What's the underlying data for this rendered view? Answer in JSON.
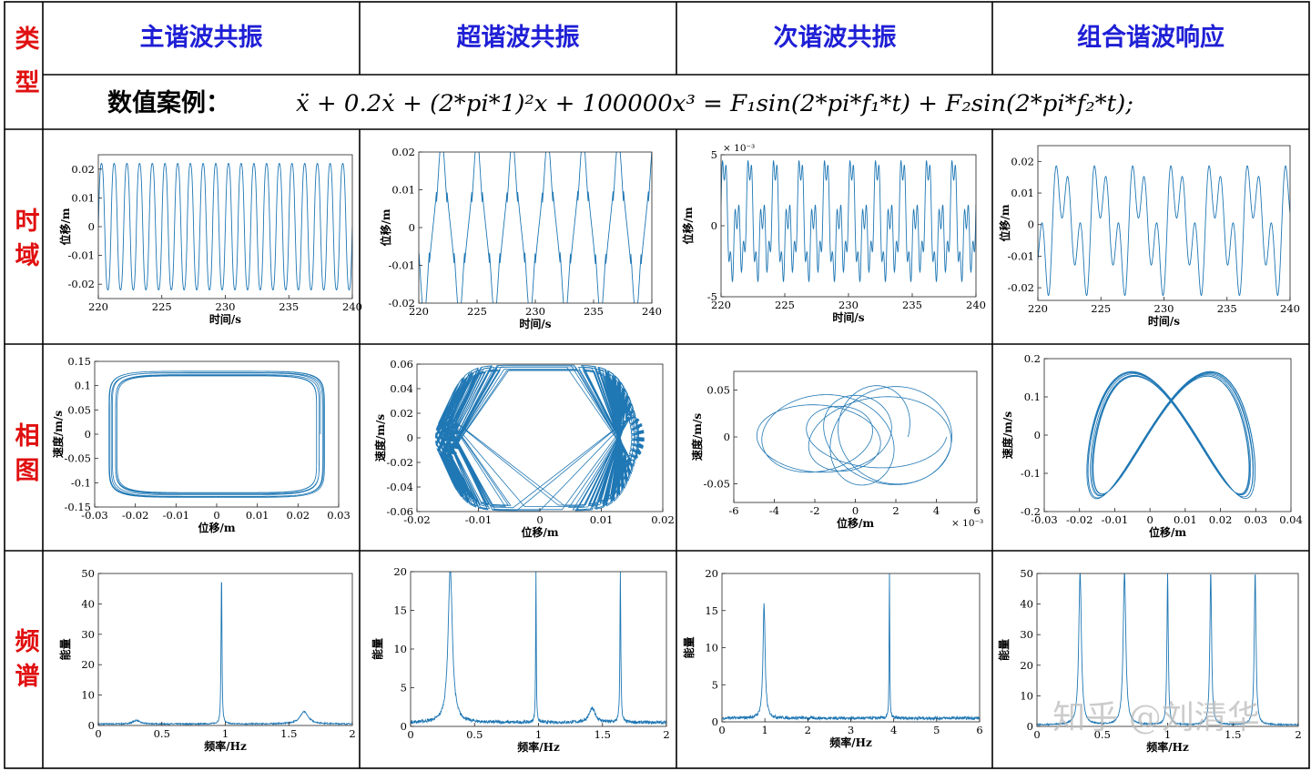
{
  "row_labels": {
    "type": "类型",
    "time": "时域",
    "phase": "相图",
    "spectrum": "频谱"
  },
  "columns": [
    "主谐波共振",
    "超谐波共振",
    "次谐波共振",
    "组合谐波响应"
  ],
  "example": {
    "label": "数值案例：",
    "equation": "ẍ + 0.2ẋ + (2*pi*1)²x + 100000x³ = F₁sin(2*pi*f₁*t) + F₂sin(2*pi*f₂*t);"
  },
  "watermark": "知乎 @刘清华",
  "colors": {
    "header_text": "#1f1fd6",
    "row_label": "#e01010",
    "line": "#1f77b4",
    "border": "#000000"
  },
  "chart_data": [
    {
      "id": "t1",
      "type": "line",
      "kind": "time",
      "xlabel": "时间/s",
      "ylabel": "位移/m",
      "xlim": [
        220,
        240
      ],
      "ylim": [
        -0.025,
        0.025
      ],
      "xticks": [
        220,
        225,
        230,
        235,
        240
      ],
      "yticks": [
        -0.02,
        -0.01,
        0,
        0.01,
        0.02
      ],
      "ytick_labels": [
        "-0.02",
        "-0.01",
        "0",
        "0.01",
        "0.02"
      ],
      "freq": 1.0,
      "amp": 0.025
    },
    {
      "id": "t2",
      "type": "line",
      "kind": "time",
      "xlabel": "时间/s",
      "ylabel": "位移/m",
      "xlim": [
        220,
        240
      ],
      "ylim": [
        -0.02,
        0.02
      ],
      "xticks": [
        220,
        225,
        230,
        235,
        240
      ],
      "yticks": [
        -0.02,
        -0.01,
        0,
        0.01,
        0.02
      ],
      "ytick_labels": [
        "-0.02",
        "-0.01",
        "0",
        "0.01",
        "0.02"
      ],
      "freq": 0.33,
      "amp": 0.017
    },
    {
      "id": "t3",
      "type": "line",
      "kind": "time",
      "xlabel": "时间/s",
      "ylabel": "位移/m",
      "xlim": [
        220,
        240
      ],
      "ylim": [
        -5,
        5
      ],
      "xticks": [
        220,
        225,
        230,
        235,
        240
      ],
      "yticks": [
        -5,
        0,
        5
      ],
      "ytick_labels": [
        "-5",
        "0",
        "5"
      ],
      "exponent": "× 10⁻³",
      "freq": 1.0,
      "amp": 5
    },
    {
      "id": "t4",
      "type": "line",
      "kind": "time",
      "xlabel": "时间/s",
      "ylabel": "位移/m",
      "xlim": [
        220,
        240
      ],
      "ylim": [
        -0.024,
        0.025
      ],
      "xticks": [
        220,
        225,
        230,
        235,
        240
      ],
      "yticks": [
        -0.02,
        -0.01,
        0,
        0.01,
        0.02
      ],
      "ytick_labels": [
        "-0.02",
        "-0.01",
        "0",
        "0.01",
        "0.02"
      ],
      "freq": 0.33,
      "amp": 0.024
    },
    {
      "id": "p1",
      "type": "line",
      "kind": "phase",
      "xlabel": "位移/m",
      "ylabel": "速度/m/s",
      "xlim": [
        -0.03,
        0.03
      ],
      "ylim": [
        -0.15,
        0.15
      ],
      "xticks": [
        -0.03,
        -0.02,
        -0.01,
        0,
        0.01,
        0.02,
        0.03
      ],
      "xtick_labels": [
        "-0.03",
        "-0.02",
        "-0.01",
        "0",
        "0.01",
        "0.02",
        "0.03"
      ],
      "yticks": [
        -0.15,
        -0.1,
        -0.05,
        0,
        0.05,
        0.1,
        0.15
      ],
      "ytick_labels": [
        "-0.15",
        "-0.1",
        "-0.05",
        "0",
        "0.05",
        "0.1",
        "0.15"
      ]
    },
    {
      "id": "p2",
      "type": "line",
      "kind": "phase",
      "xlabel": "位移/m",
      "ylabel": "速度/m/s",
      "xlim": [
        -0.02,
        0.02
      ],
      "ylim": [
        -0.06,
        0.06
      ],
      "xticks": [
        -0.02,
        -0.01,
        0,
        0.01,
        0.02
      ],
      "xtick_labels": [
        "-0.02",
        "-0.01",
        "0",
        "0.01",
        "0.02"
      ],
      "yticks": [
        -0.06,
        -0.04,
        -0.02,
        0,
        0.02,
        0.04,
        0.06
      ],
      "ytick_labels": [
        "-0.06",
        "-0.04",
        "-0.02",
        "0",
        "0.02",
        "0.04",
        "0.06"
      ]
    },
    {
      "id": "p3",
      "type": "line",
      "kind": "phase",
      "xlabel": "位移/m",
      "ylabel": "速度/m/s",
      "xlim": [
        -6,
        6
      ],
      "ylim": [
        -0.07,
        0.07
      ],
      "xticks": [
        -6,
        -4,
        -2,
        0,
        2,
        4,
        6
      ],
      "xtick_labels": [
        "-6",
        "-4",
        "-2",
        "0",
        "2",
        "4",
        "6"
      ],
      "yticks": [
        -0.05,
        0,
        0.05
      ],
      "ytick_labels": [
        "-0.05",
        "0",
        "0.05"
      ],
      "exponent": "× 10⁻³"
    },
    {
      "id": "p4",
      "type": "line",
      "kind": "phase",
      "xlabel": "位移/m",
      "ylabel": "速度/m/s",
      "xlim": [
        -0.03,
        0.04
      ],
      "ylim": [
        -0.2,
        0.2
      ],
      "xticks": [
        -0.03,
        -0.02,
        -0.01,
        0,
        0.01,
        0.02,
        0.03,
        0.04
      ],
      "xtick_labels": [
        "-0.03",
        "-0.02",
        "-0.01",
        "0",
        "0.01",
        "0.02",
        "0.03",
        "0.04"
      ],
      "yticks": [
        -0.2,
        -0.1,
        0,
        0.1,
        0.2
      ],
      "ytick_labels": [
        "-0.2",
        "-0.1",
        "0",
        "0.1",
        "0.2"
      ]
    },
    {
      "id": "s1",
      "type": "line",
      "kind": "spectrum",
      "xlabel": "频率/Hz",
      "ylabel": "能量",
      "xlim": [
        0,
        2
      ],
      "ylim": [
        0,
        50
      ],
      "xticks": [
        0,
        0.5,
        1,
        1.5,
        2
      ],
      "xtick_labels": [
        "0",
        "0.5",
        "1",
        "1.5",
        "2"
      ],
      "yticks": [
        0,
        10,
        20,
        30,
        40,
        50
      ],
      "ytick_labels": [
        "0",
        "10",
        "20",
        "30",
        "40",
        "50"
      ],
      "peaks": [
        [
          0.3,
          1.2,
          0.03
        ],
        [
          0.97,
          50,
          0.004
        ],
        [
          1.62,
          4,
          0.04
        ]
      ]
    },
    {
      "id": "s2",
      "type": "line",
      "kind": "spectrum",
      "xlabel": "频率/Hz",
      "ylabel": "能量",
      "xlim": [
        0,
        2
      ],
      "ylim": [
        0,
        20
      ],
      "xticks": [
        0,
        0.5,
        1,
        1.5,
        2
      ],
      "xtick_labels": [
        "0",
        "0.5",
        "1",
        "1.5",
        "2"
      ],
      "yticks": [
        0,
        5,
        10,
        15,
        20
      ],
      "ytick_labels": [
        "0",
        "5",
        "10",
        "15",
        "20"
      ],
      "peaks": [
        [
          0.31,
          20,
          0.02
        ],
        [
          0.98,
          20,
          0.003
        ],
        [
          1.42,
          1.8,
          0.03
        ],
        [
          1.64,
          20,
          0.004
        ]
      ]
    },
    {
      "id": "s3",
      "type": "line",
      "kind": "spectrum",
      "xlabel": "频率/Hz",
      "ylabel": "能量",
      "xlim": [
        0,
        6
      ],
      "ylim": [
        0,
        20
      ],
      "xticks": [
        0,
        1,
        2,
        3,
        4,
        5,
        6
      ],
      "xtick_labels": [
        "0",
        "1",
        "2",
        "3",
        "4",
        "5",
        "6"
      ],
      "yticks": [
        0,
        5,
        10,
        15,
        20
      ],
      "ytick_labels": [
        "0",
        "5",
        "10",
        "15",
        "20"
      ],
      "peaks": [
        [
          0.98,
          15.3,
          0.03
        ],
        [
          3.9,
          20,
          0.008
        ]
      ]
    },
    {
      "id": "s4",
      "type": "line",
      "kind": "spectrum",
      "xlabel": "频率/Hz",
      "ylabel": "能量",
      "xlim": [
        0,
        2
      ],
      "ylim": [
        0,
        50
      ],
      "xticks": [
        0,
        0.5,
        1,
        1.5,
        2
      ],
      "xtick_labels": [
        "0",
        "0.5",
        "1",
        "1.5",
        "2"
      ],
      "yticks": [
        0,
        10,
        20,
        30,
        40,
        50
      ],
      "ytick_labels": [
        "0",
        "10",
        "20",
        "30",
        "40",
        "50"
      ],
      "peaks": [
        [
          0.33,
          50,
          0.012
        ],
        [
          0.67,
          50,
          0.012
        ],
        [
          1.0,
          50,
          0.006
        ],
        [
          1.33,
          50,
          0.008
        ],
        [
          1.67,
          50,
          0.008
        ]
      ]
    }
  ]
}
